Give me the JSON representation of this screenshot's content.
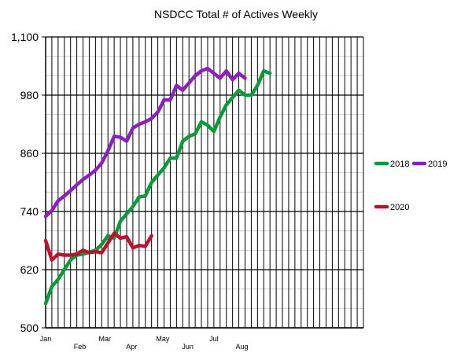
{
  "chart_data": {
    "type": "line",
    "title": "NSDCC Total # of Actives Weekly",
    "xlabel": "",
    "ylabel": "",
    "ylim": [
      500,
      1100
    ],
    "yticks": [
      500,
      620,
      740,
      860,
      980,
      1100
    ],
    "ytick_labels": [
      "500",
      "620",
      "740",
      "860",
      "980",
      "1,100"
    ],
    "xlim": [
      1,
      52
    ],
    "month_ticks": [
      {
        "label": "Jan",
        "week": 1
      },
      {
        "label": "Feb",
        "week": 6.5
      },
      {
        "label": "Mar",
        "week": 10.5
      },
      {
        "label": "Apr",
        "week": 14.8
      },
      {
        "label": "May",
        "week": 19.8
      },
      {
        "label": "Jun",
        "week": 23.8
      },
      {
        "label": "Jul",
        "week": 28
      },
      {
        "label": "Aug",
        "week": 32.5
      }
    ],
    "grid": true,
    "legend_position": "right",
    "series": [
      {
        "name": "2018",
        "color": "#0a9a3a",
        "values": [
          550,
          585,
          600,
          620,
          640,
          650,
          652,
          656,
          660,
          672,
          690,
          685,
          720,
          735,
          750,
          770,
          772,
          800,
          815,
          830,
          850,
          850,
          885,
          895,
          900,
          925,
          918,
          905,
          935,
          960,
          975,
          990,
          980,
          980,
          1000,
          1030,
          1025
        ]
      },
      {
        "name": "2019",
        "color": "#8b1fc0",
        "values": [
          730,
          742,
          762,
          772,
          783,
          795,
          806,
          815,
          825,
          840,
          865,
          895,
          893,
          885,
          912,
          920,
          925,
          932,
          945,
          970,
          970,
          1000,
          990,
          1005,
          1020,
          1030,
          1035,
          1025,
          1015,
          1030,
          1012,
          1025,
          1015
        ]
      },
      {
        "name": "2020",
        "color": "#c0102e",
        "values": [
          680,
          640,
          652,
          650,
          650,
          652,
          660,
          655,
          657,
          655,
          675,
          695,
          685,
          688,
          665,
          670,
          668,
          690
        ]
      }
    ]
  }
}
